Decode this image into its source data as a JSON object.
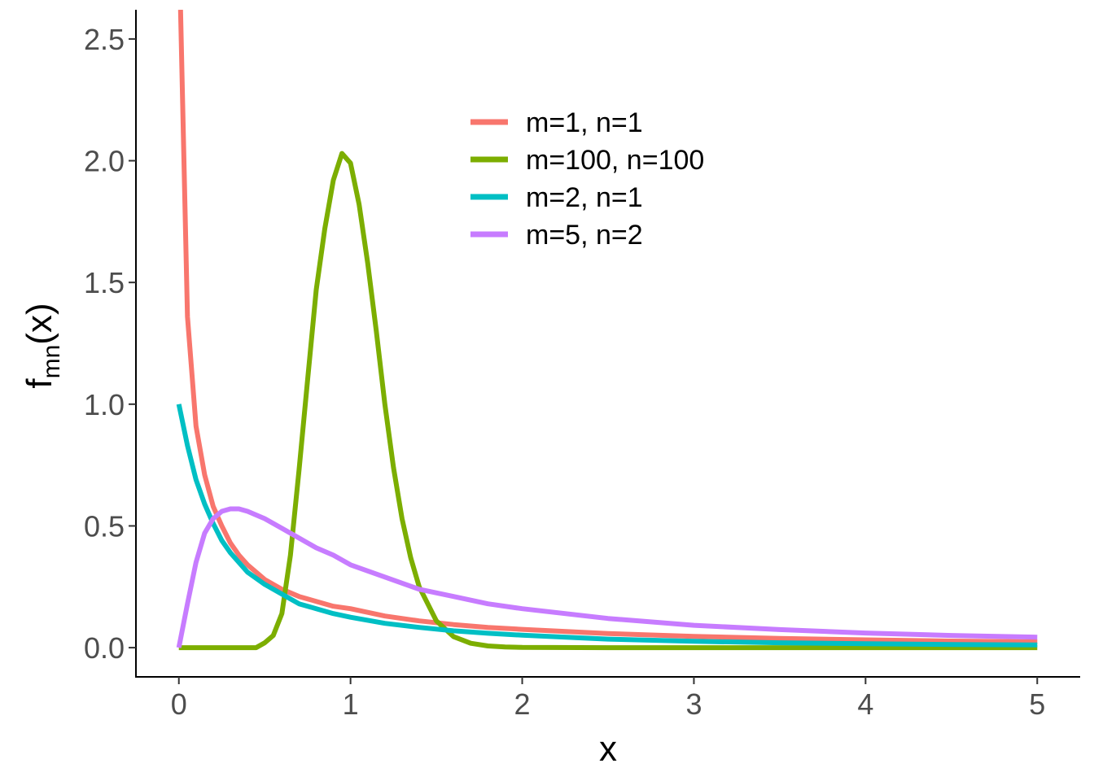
{
  "chart_data": {
    "type": "line",
    "title": "",
    "xlabel": "x",
    "ylabel_main": "f",
    "ylabel_sub": "mn",
    "ylabel_paren": "(x)",
    "xlim": [
      -0.25,
      5.25
    ],
    "ylim": [
      -0.12,
      2.62
    ],
    "x_ticks": [
      {
        "value": 0,
        "label": "0"
      },
      {
        "value": 1,
        "label": "1"
      },
      {
        "value": 2,
        "label": "2"
      },
      {
        "value": 3,
        "label": "3"
      },
      {
        "value": 4,
        "label": "4"
      },
      {
        "value": 5,
        "label": "5"
      }
    ],
    "y_ticks": [
      {
        "value": 0.0,
        "label": "0.0"
      },
      {
        "value": 0.5,
        "label": "0.5"
      },
      {
        "value": 1.0,
        "label": "1.0"
      },
      {
        "value": 1.5,
        "label": "1.5"
      },
      {
        "value": 2.0,
        "label": "2.0"
      },
      {
        "value": 2.5,
        "label": "2.5"
      }
    ],
    "grid": false,
    "legend_position": "top-center",
    "series": [
      {
        "name": "m=1, n=1",
        "color": "#F8766D",
        "x": [
          0.01,
          0.05,
          0.1,
          0.15,
          0.2,
          0.25,
          0.3,
          0.35,
          0.4,
          0.5,
          0.6,
          0.7,
          0.8,
          0.9,
          1.0,
          1.2,
          1.4,
          1.6,
          1.8,
          2.0,
          2.5,
          3.0,
          3.5,
          4.0,
          4.5,
          5.0
        ],
        "values": [
          2.62,
          1.36,
          0.91,
          0.71,
          0.58,
          0.5,
          0.43,
          0.38,
          0.34,
          0.28,
          0.24,
          0.21,
          0.19,
          0.17,
          0.16,
          0.13,
          0.11,
          0.095,
          0.083,
          0.075,
          0.058,
          0.046,
          0.038,
          0.032,
          0.027,
          0.024
        ]
      },
      {
        "name": "m=100, n=100",
        "color": "#7CAE00",
        "x": [
          0.0,
          0.1,
          0.2,
          0.3,
          0.4,
          0.45,
          0.5,
          0.55,
          0.6,
          0.65,
          0.7,
          0.75,
          0.8,
          0.85,
          0.9,
          0.95,
          1.0,
          1.05,
          1.1,
          1.15,
          1.2,
          1.25,
          1.3,
          1.35,
          1.4,
          1.5,
          1.6,
          1.7,
          1.8,
          1.9,
          2.0,
          2.5,
          3.0,
          4.0,
          5.0
        ],
        "values": [
          0,
          0,
          0,
          0,
          0,
          0.0,
          0.02,
          0.05,
          0.14,
          0.38,
          0.73,
          1.1,
          1.47,
          1.72,
          1.92,
          2.03,
          1.99,
          1.82,
          1.58,
          1.3,
          1.0,
          0.74,
          0.53,
          0.37,
          0.25,
          0.11,
          0.045,
          0.018,
          0.007,
          0.003,
          0.001,
          0,
          0,
          0,
          0
        ]
      },
      {
        "name": "m=2, n=1",
        "color": "#00BFC4",
        "x": [
          0.0,
          0.05,
          0.1,
          0.15,
          0.2,
          0.25,
          0.3,
          0.4,
          0.5,
          0.6,
          0.7,
          0.8,
          0.9,
          1.0,
          1.2,
          1.4,
          1.6,
          1.8,
          2.0,
          2.5,
          3.0,
          3.5,
          4.0,
          4.5,
          5.0
        ],
        "values": [
          1.0,
          0.83,
          0.69,
          0.59,
          0.51,
          0.44,
          0.39,
          0.31,
          0.26,
          0.22,
          0.18,
          0.16,
          0.14,
          0.125,
          0.1,
          0.083,
          0.069,
          0.059,
          0.051,
          0.035,
          0.026,
          0.02,
          0.016,
          0.013,
          0.011
        ]
      },
      {
        "name": "m=5, n=2",
        "color": "#C77CFF",
        "x": [
          0.0,
          0.05,
          0.1,
          0.15,
          0.2,
          0.25,
          0.3,
          0.35,
          0.4,
          0.5,
          0.6,
          0.7,
          0.8,
          0.9,
          1.0,
          1.2,
          1.4,
          1.6,
          1.8,
          2.0,
          2.5,
          3.0,
          3.5,
          4.0,
          4.5,
          5.0
        ],
        "values": [
          0.0,
          0.18,
          0.35,
          0.47,
          0.53,
          0.56,
          0.57,
          0.57,
          0.56,
          0.53,
          0.49,
          0.45,
          0.41,
          0.38,
          0.34,
          0.29,
          0.24,
          0.21,
          0.18,
          0.16,
          0.12,
          0.092,
          0.074,
          0.06,
          0.05,
          0.043
        ]
      }
    ]
  }
}
